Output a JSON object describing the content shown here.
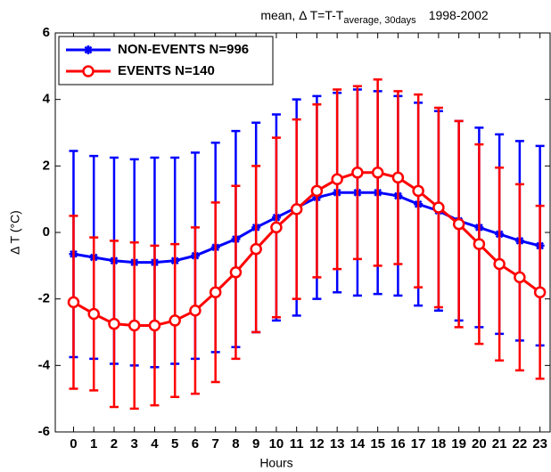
{
  "chart_data": {
    "type": "errorbar-line",
    "title": "mean, Δ T=T-T",
    "title_subscript": "average, 30days",
    "title_suffix": "1998-2002",
    "xlabel": "Hours",
    "ylabel": "Δ T (°C)",
    "x": [
      0,
      1,
      2,
      3,
      4,
      5,
      6,
      7,
      8,
      9,
      10,
      11,
      12,
      13,
      14,
      15,
      16,
      17,
      18,
      19,
      20,
      21,
      22,
      23
    ],
    "xlim": [
      -0.9,
      23.5
    ],
    "xticks": [
      0,
      1,
      2,
      3,
      4,
      5,
      6,
      7,
      8,
      9,
      10,
      11,
      12,
      13,
      14,
      15,
      16,
      17,
      18,
      19,
      20,
      21,
      22,
      23
    ],
    "ylim": [
      -6,
      6
    ],
    "yticks": [
      -6,
      -4,
      -2,
      0,
      2,
      4,
      6
    ],
    "legend": "upper left",
    "series": [
      {
        "name": "NON-EVENTS N=996",
        "color": "#0000ff",
        "marker": "asterisk",
        "values": [
          -0.65,
          -0.75,
          -0.85,
          -0.9,
          -0.9,
          -0.85,
          -0.7,
          -0.45,
          -0.2,
          0.15,
          0.45,
          0.75,
          1.05,
          1.2,
          1.2,
          1.2,
          1.1,
          0.85,
          0.65,
          0.35,
          0.15,
          -0.05,
          -0.25,
          -0.4
        ],
        "errors": [
          3.1,
          3.05,
          3.1,
          3.1,
          3.15,
          3.1,
          3.1,
          3.15,
          3.25,
          3.15,
          3.1,
          3.25,
          3.05,
          3.0,
          3.1,
          3.05,
          3.0,
          3.05,
          3.0,
          3.0,
          3.0,
          3.0,
          3.0,
          3.0
        ]
      },
      {
        "name": "EVENTS N=140",
        "color": "#ff0000",
        "marker": "circle",
        "values": [
          -2.1,
          -2.45,
          -2.75,
          -2.8,
          -2.8,
          -2.65,
          -2.35,
          -1.8,
          -1.2,
          -0.5,
          0.15,
          0.7,
          1.25,
          1.6,
          1.8,
          1.8,
          1.65,
          1.25,
          0.75,
          0.25,
          -0.35,
          -0.95,
          -1.35,
          -1.8
        ],
        "errors": [
          2.6,
          2.3,
          2.5,
          2.5,
          2.4,
          2.3,
          2.5,
          2.7,
          2.6,
          2.5,
          2.7,
          2.7,
          2.6,
          2.7,
          2.6,
          2.8,
          2.6,
          2.9,
          3.0,
          3.1,
          3.0,
          2.9,
          2.8,
          2.6
        ]
      }
    ]
  }
}
